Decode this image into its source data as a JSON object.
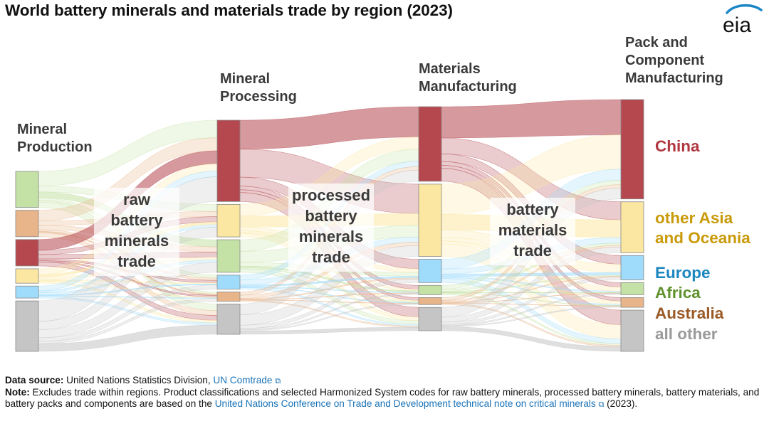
{
  "title": "World battery minerals and materials trade by region (2023)",
  "logo_text": "eia",
  "chart_data": {
    "type": "sankey",
    "stages": [
      {
        "id": "production",
        "label_lines": [
          "Mineral",
          "Production"
        ]
      },
      {
        "id": "processing",
        "label_lines": [
          "Mineral",
          "Processing"
        ]
      },
      {
        "id": "materials",
        "label_lines": [
          "Materials",
          "Manufacturing"
        ]
      },
      {
        "id": "pack",
        "label_lines": [
          "Pack and",
          "Component",
          "Manufacturing"
        ]
      }
    ],
    "flow_labels": [
      {
        "lines": [
          "raw",
          "battery",
          "minerals",
          "trade"
        ]
      },
      {
        "lines": [
          "processed",
          "battery",
          "minerals",
          "trade"
        ]
      },
      {
        "lines": [
          "battery",
          "materials",
          "trade"
        ]
      }
    ],
    "regions": [
      {
        "id": "china",
        "label_lines": [
          "China"
        ],
        "color": "#b5474f",
        "label_color": "#b0363f"
      },
      {
        "id": "asia",
        "label_lines": [
          "other Asia",
          "and Oceania"
        ],
        "color": "#fbe7a1",
        "label_color": "#c99a0a"
      },
      {
        "id": "europe",
        "label_lines": [
          "Europe"
        ],
        "color": "#9fdcfb",
        "label_color": "#1b86bf"
      },
      {
        "id": "africa",
        "label_lines": [
          "Africa"
        ],
        "color": "#c4e2a6",
        "label_color": "#5f922d"
      },
      {
        "id": "australia",
        "label_lines": [
          "Australia"
        ],
        "color": "#e8b48a",
        "label_color": "#9a5a26"
      },
      {
        "id": "other",
        "label_lines": [
          "all other"
        ],
        "color": "#c5c5c5",
        "label_color": "#9a9a9a"
      }
    ],
    "node_order": {
      "production": [
        "africa",
        "australia",
        "china",
        "asia",
        "europe",
        "other"
      ],
      "processing": [
        "china",
        "asia",
        "africa",
        "europe",
        "australia",
        "other"
      ],
      "materials": [
        "china",
        "asia",
        "europe",
        "africa",
        "australia",
        "other"
      ],
      "pack": [
        "china",
        "asia",
        "europe",
        "africa",
        "australia",
        "other"
      ]
    },
    "node_values": {
      "production": {
        "africa": 15,
        "australia": 11,
        "china": 11,
        "asia": 6,
        "europe": 5,
        "other": 21
      },
      "processing": {
        "china": 35,
        "asia": 14,
        "africa": 14,
        "europe": 6,
        "australia": 4,
        "other": 13
      },
      "materials": {
        "china": 32,
        "asia": 31,
        "europe": 10,
        "africa": 4,
        "australia": 3,
        "other": 10
      },
      "pack": {
        "china": 41,
        "asia": 21,
        "europe": 10,
        "africa": 5,
        "australia": 4,
        "other": 17
      }
    }
  },
  "footer": {
    "source_label": "Data source:",
    "source_text": " United Nations Statistics Division, ",
    "source_link": "UN Comtrade",
    "note_label": "Note:",
    "note_text": " Excludes trade within regions. Product classifications and selected Harmonized System codes for raw battery minerals, processed battery minerals, battery materials, and battery packs and components are based on the ",
    "note_link": "United Nations Conference on Trade and Development technical note on critical minerals",
    "note_end": " (2023)."
  }
}
